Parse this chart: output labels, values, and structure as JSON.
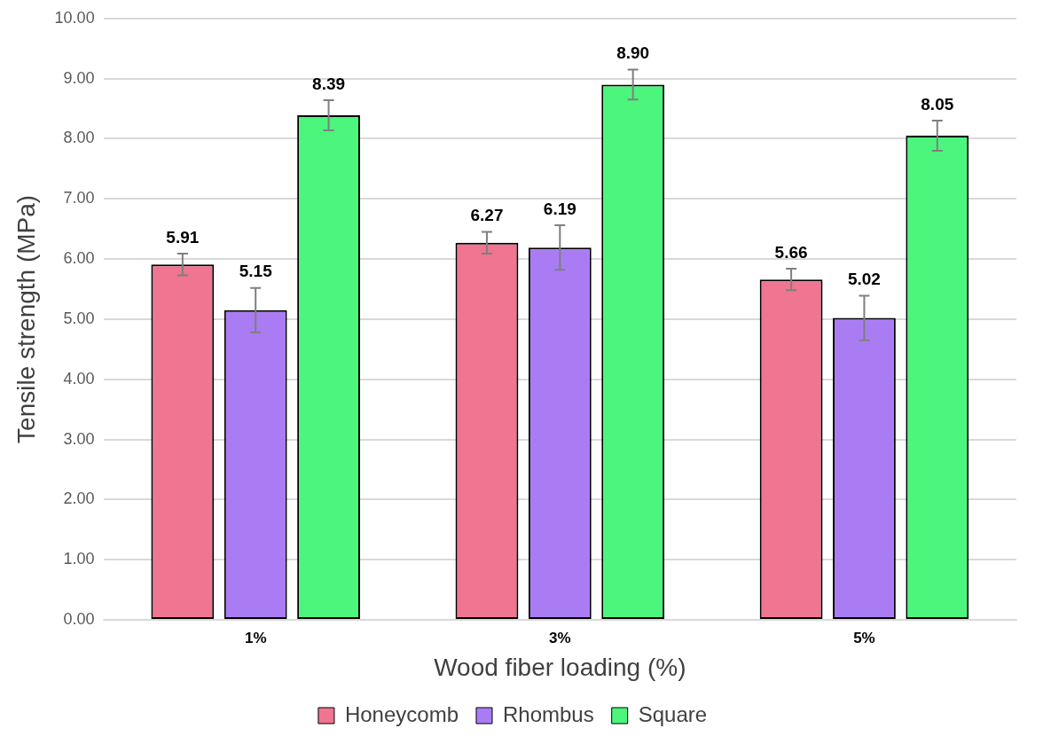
{
  "chart_data": {
    "type": "bar",
    "xlabel": "Wood fiber loading (%)",
    "ylabel": "Tensile strength (MPa)",
    "categories": [
      "1%",
      "3%",
      "5%"
    ],
    "series": [
      {
        "name": "Honeycomb",
        "color": "#f07590",
        "values": [
          5.91,
          6.27,
          5.66
        ],
        "errors": [
          0.18,
          0.18,
          0.18
        ],
        "value_labels": [
          "5.91",
          "6.27",
          "5.66"
        ]
      },
      {
        "name": "Rhombus",
        "color": "#aa7cf4",
        "values": [
          5.15,
          6.19,
          5.02
        ],
        "errors": [
          0.37,
          0.37,
          0.37
        ],
        "value_labels": [
          "5.15",
          "6.19",
          "5.02"
        ]
      },
      {
        "name": "Square",
        "color": "#4cf57c",
        "values": [
          8.39,
          8.9,
          8.05
        ],
        "errors": [
          0.25,
          0.25,
          0.25
        ],
        "value_labels": [
          "8.39",
          "8.90",
          "8.05"
        ]
      }
    ],
    "ylim": [
      0,
      10
    ],
    "yticks": [
      {
        "value": 0,
        "label": "0.00"
      },
      {
        "value": 1,
        "label": "1.00"
      },
      {
        "value": 2,
        "label": "2.00"
      },
      {
        "value": 3,
        "label": "3.00"
      },
      {
        "value": 4,
        "label": "4.00"
      },
      {
        "value": 5,
        "label": "5.00"
      },
      {
        "value": 6,
        "label": "6.00"
      },
      {
        "value": 7,
        "label": "7.00"
      },
      {
        "value": 8,
        "label": "8.00"
      },
      {
        "value": 9,
        "label": "9.00"
      },
      {
        "value": 10,
        "label": "10.00"
      }
    ],
    "grid": "y",
    "legend": "bottom"
  }
}
